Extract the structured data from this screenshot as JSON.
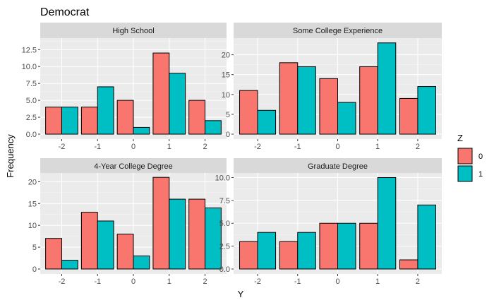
{
  "chart_data": {
    "type": "bar",
    "title": "Democrat",
    "xlabel": "Y",
    "ylabel": "Frequency",
    "categories": [
      "-2",
      "-1",
      "0",
      "1",
      "2"
    ],
    "legend": {
      "title": "Z",
      "placement": "right",
      "entries": [
        {
          "label": "0",
          "color": "#F8766D"
        },
        {
          "label": "1",
          "color": "#00BFC4"
        }
      ]
    },
    "grid": true,
    "facets": [
      {
        "label": "High School",
        "ylim": [
          0,
          14.2
        ],
        "yticks": [
          "0.0",
          "2.5",
          "5.0",
          "7.5",
          "10.0",
          "12.5"
        ],
        "series": [
          {
            "name": "0",
            "values": [
              4,
              4,
              5,
              12,
              5
            ]
          },
          {
            "name": "1",
            "values": [
              4,
              7,
              1,
              9,
              2
            ]
          }
        ]
      },
      {
        "label": "Some College Experience",
        "ylim": [
          0,
          24.2
        ],
        "yticks": [
          "0",
          "5",
          "10",
          "15",
          "20"
        ],
        "series": [
          {
            "name": "0",
            "values": [
              11,
              18,
              14,
              17,
              9
            ]
          },
          {
            "name": "1",
            "values": [
              6,
              17,
              8,
              23,
              12
            ]
          }
        ]
      },
      {
        "label": "4-Year College Degree",
        "ylim": [
          0,
          22.0
        ],
        "yticks": [
          "0",
          "5",
          "10",
          "15",
          "20"
        ],
        "series": [
          {
            "name": "0",
            "values": [
              7,
              13,
              8,
              21,
              16
            ]
          },
          {
            "name": "1",
            "values": [
              2,
              11,
              3,
              16,
              14
            ]
          }
        ]
      },
      {
        "label": "Graduate Degree",
        "ylim": [
          0,
          10.5
        ],
        "yticks": [
          "0.0",
          "2.5",
          "5.0",
          "7.5",
          "10.0"
        ],
        "series": [
          {
            "name": "0",
            "values": [
              3,
              3,
              5,
              5,
              1
            ]
          },
          {
            "name": "1",
            "values": [
              4,
              4,
              5,
              10,
              7
            ]
          }
        ]
      }
    ]
  }
}
